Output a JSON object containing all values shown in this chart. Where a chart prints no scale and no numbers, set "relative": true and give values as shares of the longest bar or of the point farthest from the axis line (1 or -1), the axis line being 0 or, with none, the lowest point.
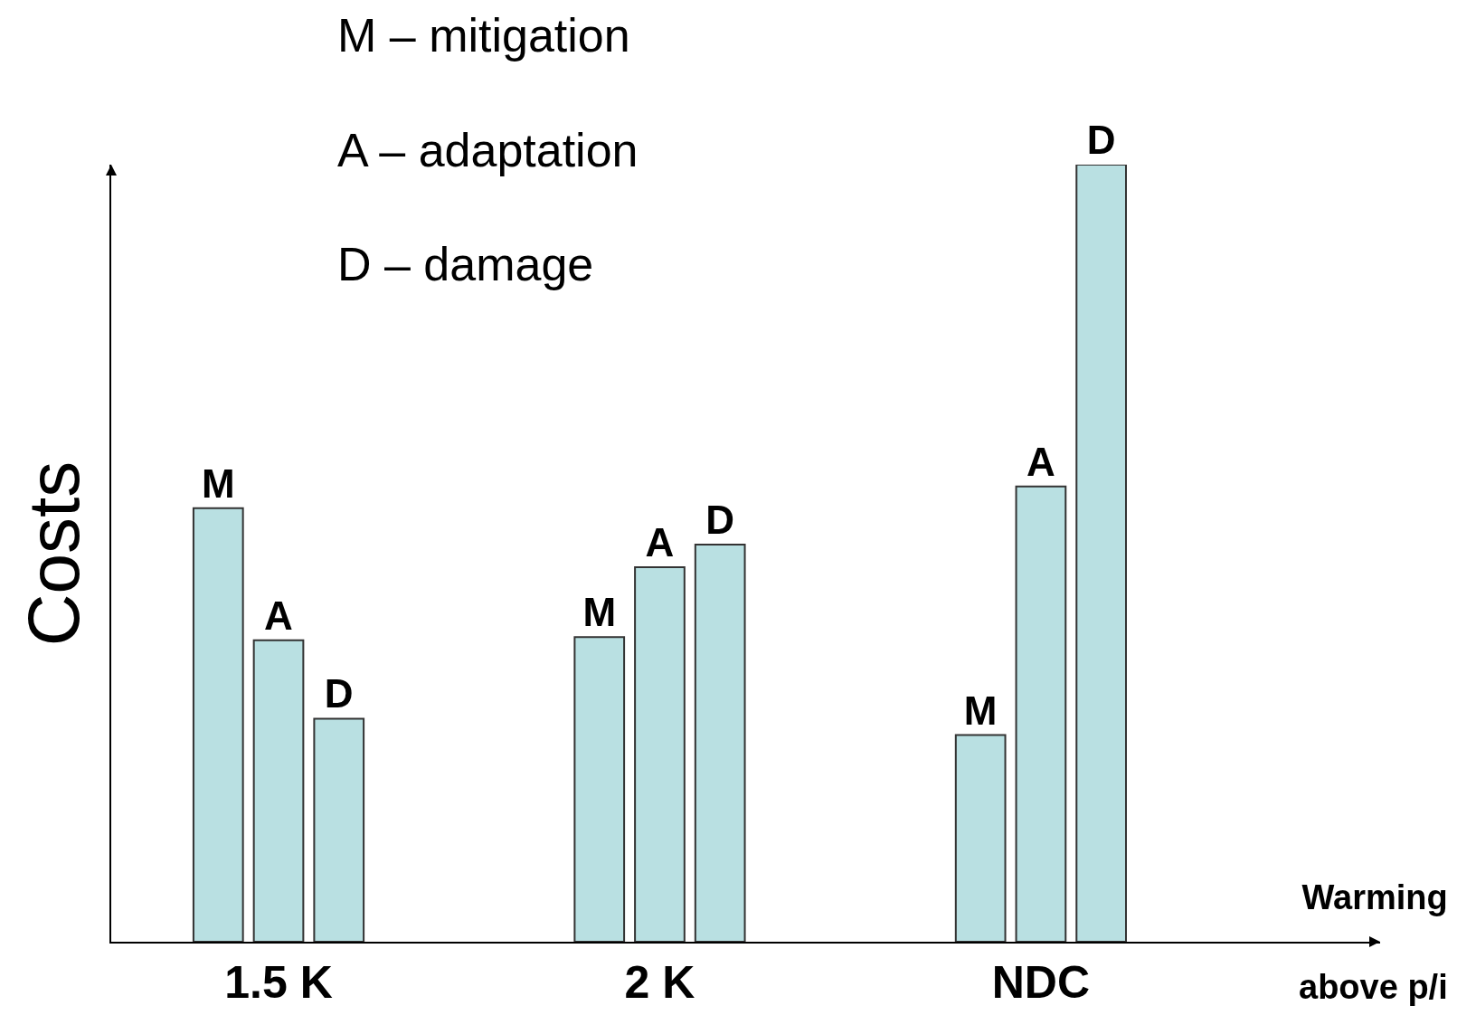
{
  "chart_data": {
    "type": "bar",
    "relative": true,
    "ylabel": "Costs",
    "xlabel": "Warming above p/i",
    "categories": [
      "1.5 K",
      "2 K",
      "NDC"
    ],
    "series": [
      {
        "name": "M",
        "color": "#b9e0e2",
        "values": [
          0.558,
          0.392,
          0.266
        ]
      },
      {
        "name": "A",
        "color": "#b9e0e2",
        "values": [
          0.388,
          0.482,
          0.586
        ]
      },
      {
        "name": "D",
        "color": "#b9e0e2",
        "values": [
          0.287,
          0.511,
          1.0
        ]
      }
    ],
    "annotations": [
      "M – mitigation",
      "A – adaptation",
      "D – damage"
    ],
    "legend": false
  }
}
